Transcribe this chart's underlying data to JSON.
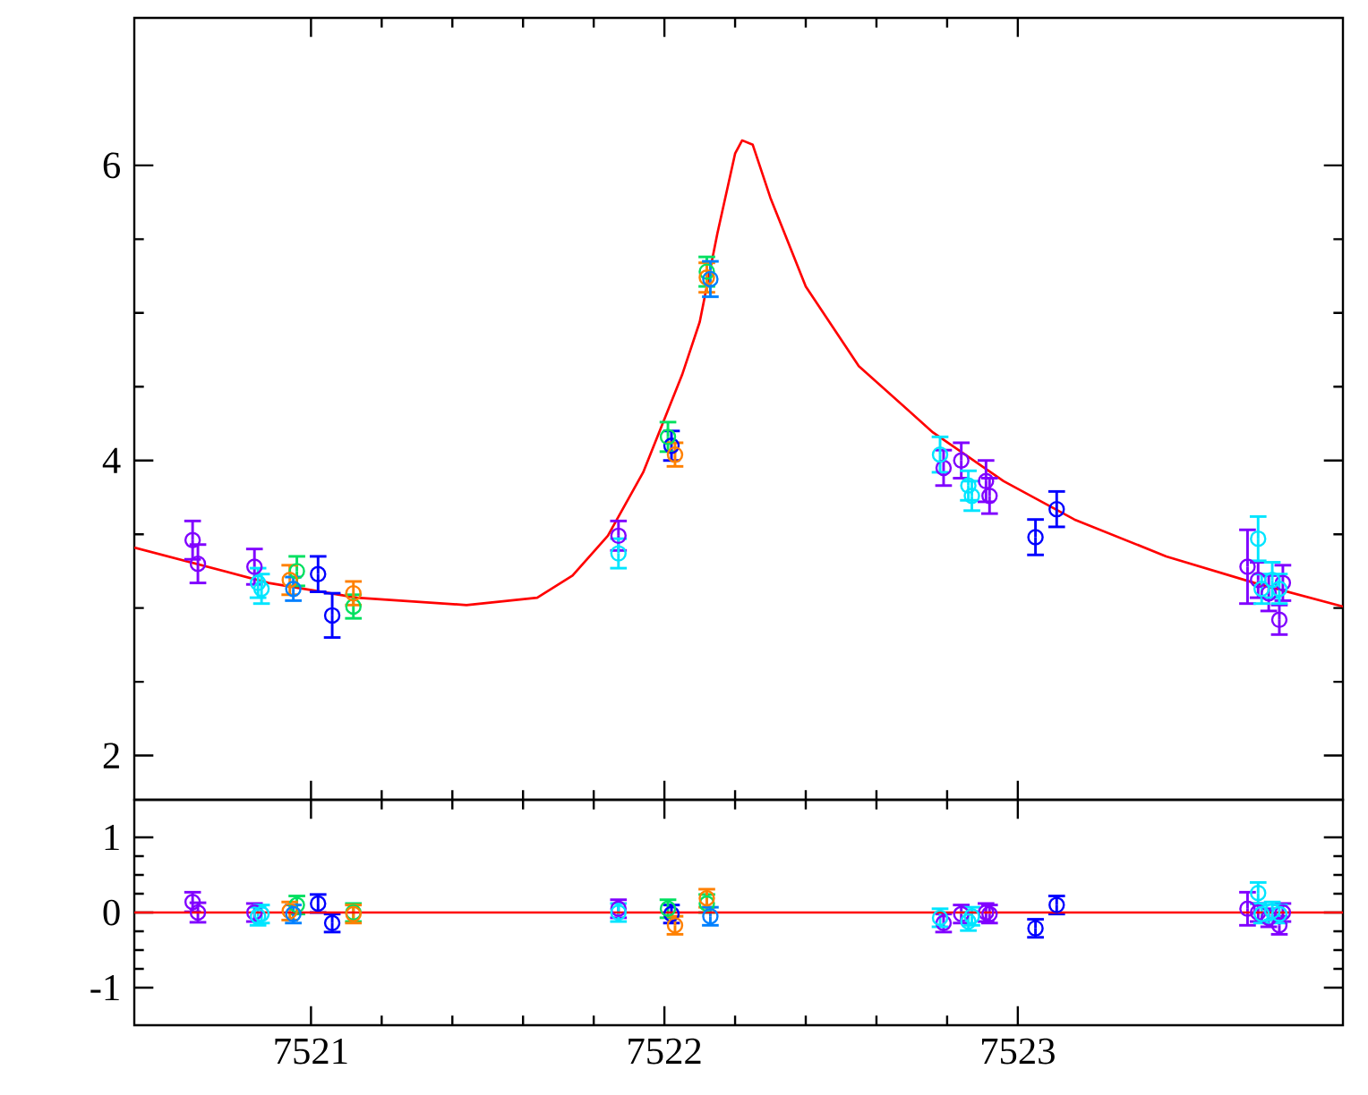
{
  "chart_data": [
    {
      "type": "scatter",
      "marker": "circle",
      "tick_labels": "y",
      "xlim": [
        7520.5,
        7523.92
      ],
      "ylim": [
        1.7,
        7
      ],
      "xticks": [
        7521,
        7522,
        7523
      ],
      "yticks": [
        2,
        4,
        6
      ],
      "series": [
        {
          "type": "line",
          "color": "#ff0000",
          "marker": "none",
          "line_style": "solid",
          "x": [
            7520.5,
            7520.88,
            7521.13,
            7521.44,
            7521.64,
            7521.74,
            7521.84,
            7521.94,
            7522.05,
            7522.1,
            7522.15,
            7522.2,
            7522.22,
            7522.25,
            7522.3,
            7522.4,
            7522.55,
            7522.76,
            7522.96,
            7523.16,
            7523.42,
            7523.67,
            7523.92
          ],
          "values": [
            3.41,
            3.17,
            3.07,
            3.02,
            3.07,
            3.22,
            3.49,
            3.92,
            4.58,
            4.94,
            5.54,
            6.08,
            6.17,
            6.14,
            5.78,
            5.18,
            4.64,
            4.19,
            3.86,
            3.6,
            3.35,
            3.17,
            3.01
          ]
        },
        {
          "color": "#8000ff",
          "x": [
            7520.665,
            7520.68,
            7520.84,
            7521.87,
            7522.79,
            7522.84,
            7522.91,
            7522.92,
            7523.65,
            7523.68,
            7523.71,
            7523.74,
            7523.75
          ],
          "values": [
            3.46,
            3.3,
            3.28,
            3.49,
            3.95,
            4.0,
            3.86,
            3.76,
            3.28,
            3.19,
            3.1,
            2.92,
            3.17
          ],
          "errors": [
            0.13,
            0.13,
            0.12,
            0.1,
            0.12,
            0.12,
            0.14,
            0.12,
            0.25,
            0.12,
            0.12,
            0.1,
            0.12
          ]
        },
        {
          "color": "#00e5ff",
          "x": [
            7520.85,
            7520.86,
            7521.87,
            7522.78,
            7522.86,
            7522.87,
            7523.68,
            7523.69,
            7523.72,
            7523.74
          ],
          "values": [
            3.17,
            3.13,
            3.37,
            4.04,
            3.83,
            3.76,
            3.47,
            3.13,
            3.19,
            3.13
          ],
          "errors": [
            0.1,
            0.1,
            0.1,
            0.12,
            0.1,
            0.1,
            0.15,
            0.1,
            0.12,
            0.1
          ]
        },
        {
          "color": "#0000ff",
          "x": [
            7521.02,
            7521.06,
            7522.02,
            7523.05,
            7523.11
          ],
          "values": [
            3.23,
            2.95,
            4.1,
            3.48,
            3.67
          ],
          "errors": [
            0.12,
            0.15,
            0.1,
            0.12,
            0.12
          ]
        },
        {
          "color": "#00e060",
          "x": [
            7520.96,
            7521.12,
            7522.01,
            7522.12
          ],
          "values": [
            3.25,
            3.01,
            4.16,
            5.28
          ],
          "errors": [
            0.1,
            0.08,
            0.1,
            0.1
          ]
        },
        {
          "color": "#ff8000",
          "x": [
            7520.94,
            7521.12,
            7522.03,
            7522.12
          ],
          "values": [
            3.19,
            3.1,
            4.04,
            5.24
          ],
          "errors": [
            0.1,
            0.08,
            0.08,
            0.1
          ]
        },
        {
          "color": "#0080ff",
          "x": [
            7520.95,
            7522.13
          ],
          "values": [
            3.13,
            5.23
          ],
          "errors": [
            0.08,
            0.12
          ]
        }
      ]
    },
    {
      "type": "scatter",
      "marker": "circle",
      "xlim": [
        7520.5,
        7523.92
      ],
      "ylim": [
        -1.5,
        1.5
      ],
      "xticks": [
        7521,
        7522,
        7523
      ],
      "yticks": [
        -1,
        0,
        1
      ],
      "ref_lines": [
        {
          "axis": "y",
          "value": 0,
          "color": "#ff0000"
        }
      ],
      "series": [
        {
          "color": "#8000ff",
          "x": [
            7520.665,
            7520.68,
            7520.84,
            7521.87,
            7522.79,
            7522.84,
            7522.91,
            7522.92,
            7523.65,
            7523.68,
            7523.71,
            7523.74,
            7523.75
          ],
          "values": [
            0.14,
            0.0,
            0.0,
            0.05,
            -0.14,
            -0.02,
            0.0,
            -0.02,
            0.05,
            0.0,
            -0.07,
            -0.17,
            0.0
          ],
          "errors": [
            0.13,
            0.13,
            0.12,
            0.12,
            0.12,
            0.12,
            0.12,
            0.12,
            0.22,
            0.12,
            0.12,
            0.12,
            0.12
          ]
        },
        {
          "color": "#00e5ff",
          "x": [
            7520.85,
            7520.86,
            7521.87,
            7522.78,
            7522.86,
            7522.87,
            7523.68,
            7523.69,
            7523.72,
            7523.74
          ],
          "values": [
            -0.05,
            -0.02,
            0.0,
            -0.07,
            -0.12,
            -0.05,
            0.26,
            -0.02,
            0.02,
            -0.02
          ],
          "errors": [
            0.12,
            0.12,
            0.12,
            0.12,
            0.12,
            0.12,
            0.14,
            0.12,
            0.12,
            0.12
          ]
        },
        {
          "color": "#0000ff",
          "x": [
            7521.02,
            7521.06,
            7522.02,
            7523.05,
            7523.11
          ],
          "values": [
            0.12,
            -0.14,
            -0.02,
            -0.21,
            0.1
          ],
          "errors": [
            0.12,
            0.12,
            0.12,
            0.12,
            0.12
          ]
        },
        {
          "color": "#00e060",
          "x": [
            7520.96,
            7521.12,
            7522.01,
            7522.12
          ],
          "values": [
            0.1,
            0.0,
            0.05,
            0.12
          ],
          "errors": [
            0.12,
            0.12,
            0.12,
            0.12
          ]
        },
        {
          "color": "#ff8000",
          "x": [
            7520.94,
            7521.12,
            7522.03,
            7522.12
          ],
          "values": [
            0.02,
            -0.02,
            -0.17,
            0.19
          ],
          "errors": [
            0.12,
            0.12,
            0.12,
            0.12
          ]
        },
        {
          "color": "#0080ff",
          "x": [
            7520.95,
            7522.13
          ],
          "values": [
            -0.02,
            -0.05
          ],
          "errors": [
            0.12,
            0.12
          ]
        }
      ]
    }
  ]
}
